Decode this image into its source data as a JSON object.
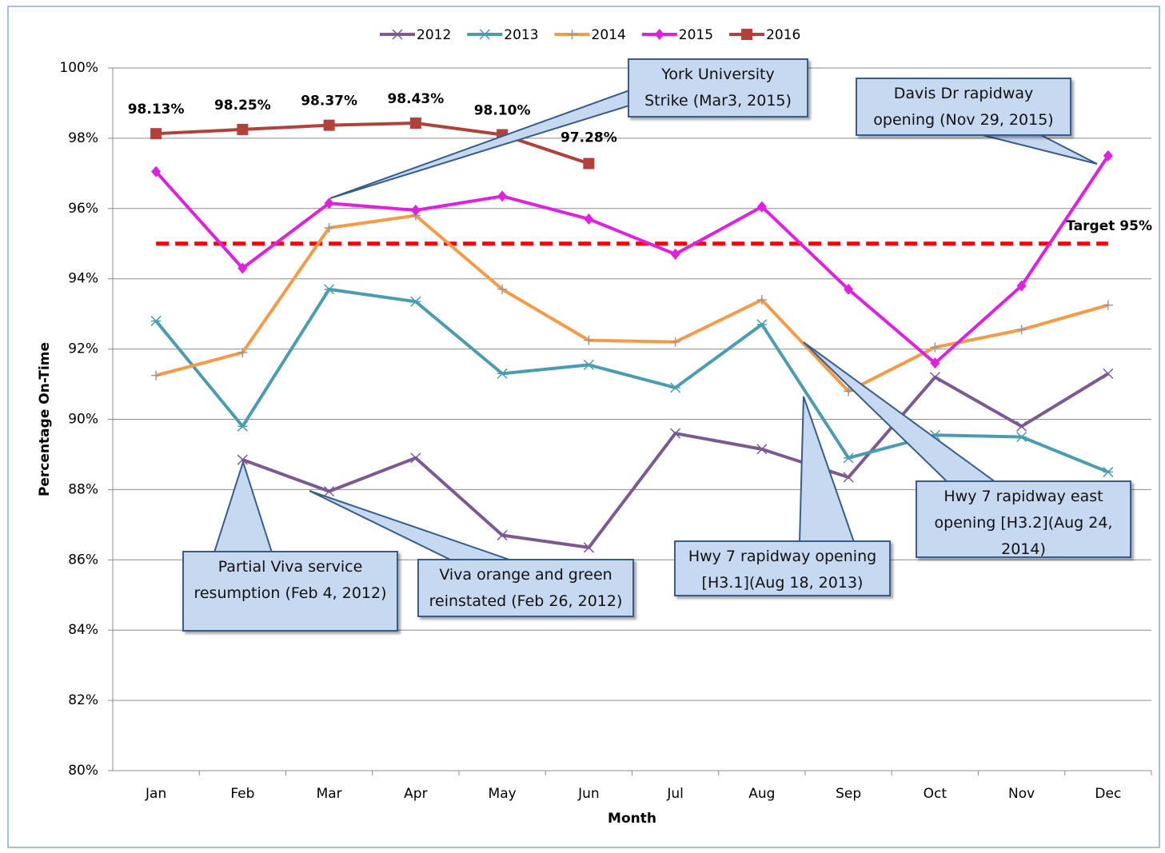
{
  "chart_data": {
    "type": "line",
    "categories": [
      "Jan",
      "Feb",
      "Mar",
      "Apr",
      "May",
      "Jun",
      "Jul",
      "Aug",
      "Sep",
      "Oct",
      "Nov",
      "Dec"
    ],
    "x_label": "Month",
    "y_label": "Percentage On-Time",
    "ylim": [
      80,
      100
    ],
    "yticks": [
      {
        "value": 80,
        "label": "80%"
      },
      {
        "value": 82,
        "label": "82%"
      },
      {
        "value": 84,
        "label": "84%"
      },
      {
        "value": 86,
        "label": "86%"
      },
      {
        "value": 88,
        "label": "88%"
      },
      {
        "value": 90,
        "label": "90%"
      },
      {
        "value": 92,
        "label": "92%"
      },
      {
        "value": 94,
        "label": "94%"
      },
      {
        "value": 96,
        "label": "96%"
      },
      {
        "value": 98,
        "label": "98%"
      },
      {
        "value": 100,
        "label": "100%"
      }
    ],
    "grid": true,
    "legend": "top",
    "series": [
      {
        "name": "2012",
        "color": "#7b5a92",
        "marker": "x",
        "values": [
          null,
          88.85,
          87.95,
          88.9,
          86.7,
          86.35,
          89.6,
          89.15,
          88.35,
          91.2,
          89.8,
          91.3
        ]
      },
      {
        "name": "2013",
        "color": "#4a9db0",
        "marker": "asterisk",
        "values": [
          92.8,
          89.8,
          93.7,
          93.35,
          91.3,
          91.55,
          90.9,
          92.7,
          88.9,
          89.55,
          89.5,
          88.5
        ]
      },
      {
        "name": "2014",
        "color": "#f79a46",
        "marker": "plus",
        "values": [
          91.25,
          91.9,
          95.45,
          95.8,
          93.7,
          92.25,
          92.2,
          93.4,
          90.8,
          92.05,
          92.55,
          93.25
        ]
      },
      {
        "name": "2015",
        "color": "#e020e0",
        "marker": "diamond",
        "values": [
          97.05,
          94.3,
          96.15,
          95.95,
          96.35,
          95.7,
          94.7,
          96.05,
          93.7,
          91.6,
          93.8,
          97.5
        ]
      },
      {
        "name": "2016",
        "color": "#b2413c",
        "marker": "square",
        "values": [
          98.13,
          98.25,
          98.37,
          98.43,
          98.1,
          97.28,
          null,
          null,
          null,
          null,
          null,
          null
        ],
        "value_labels": [
          "98.13%",
          "98.25%",
          "98.37%",
          "98.43%",
          "98.10%",
          "97.28%",
          null,
          null,
          null,
          null,
          null,
          null
        ]
      }
    ],
    "target": {
      "value": 95,
      "label": "Target 95%",
      "color": "#ff0000"
    },
    "annotations": [
      {
        "text": "York University Strike (Mar3, 2015)"
      },
      {
        "text": "Davis Dr rapidway opening (Nov 29, 2015)"
      },
      {
        "text": "Partial Viva service resumption (Feb 4, 2012)"
      },
      {
        "text": "Viva orange and green reinstated (Feb 26, 2012)"
      },
      {
        "text": "Hwy 7 rapidway opening [H3.1](Aug 18, 2013)"
      },
      {
        "text": "Hwy 7 rapidway east opening [H3.2](Aug 24, 2014)"
      }
    ]
  }
}
